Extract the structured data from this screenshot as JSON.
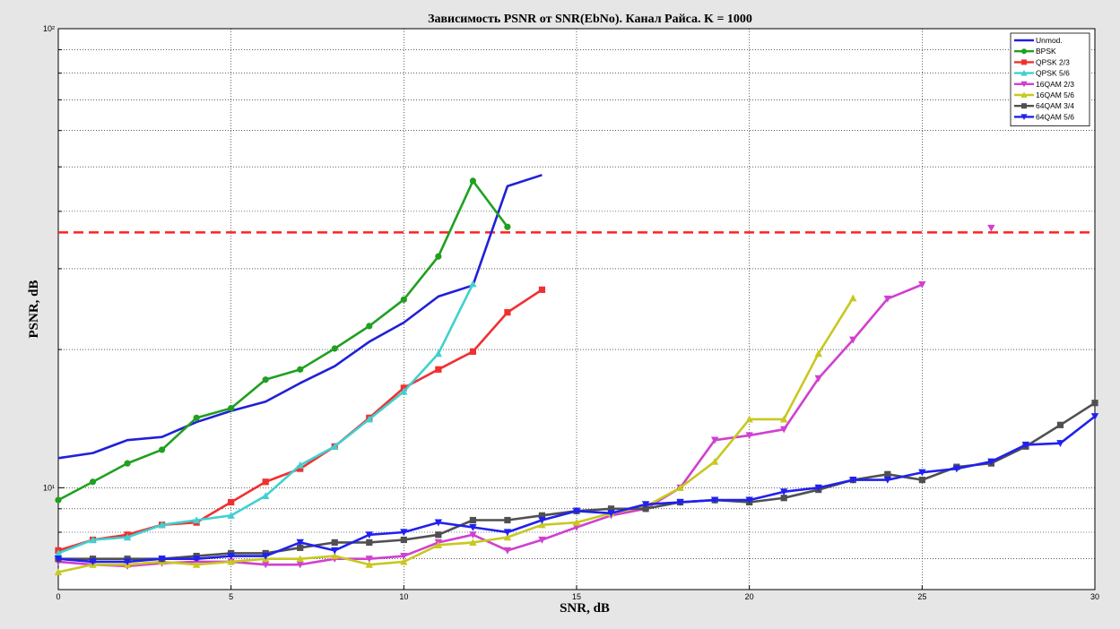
{
  "chart_data": {
    "type": "line",
    "title": "Зависимость PSNR от SNR(EbNo). Канал Райса. K = 1000",
    "xlabel": "SNR, dB",
    "ylabel": "PSNR, dB",
    "xlim": [
      0,
      30
    ],
    "ylim": [
      6,
      100
    ],
    "yscale": "log",
    "grid": true,
    "legend_position": "top-right",
    "x_ticks": [
      0,
      5,
      10,
      15,
      20,
      25,
      30
    ],
    "x_tick_labels": [
      "0",
      "5",
      "10",
      "15",
      "20",
      "25",
      "30"
    ],
    "y_ticks": [
      10,
      100
    ],
    "y_tick_labels": [
      "10¹",
      "10²"
    ],
    "threshold": {
      "value": 36,
      "color": "#ff2020",
      "style": "dashed"
    },
    "series": [
      {
        "name": "Unmod.",
        "color": "#2020d8",
        "marker": "none",
        "x": [
          0,
          1,
          2,
          3,
          4,
          5,
          6,
          7,
          8,
          9,
          10,
          11,
          12,
          13,
          14
        ],
        "y": [
          11.6,
          11.9,
          12.7,
          12.9,
          13.9,
          14.7,
          15.4,
          16.9,
          18.4,
          20.8,
          22.9,
          26.1,
          27.6,
          45.4,
          48.0
        ]
      },
      {
        "name": "BPSK",
        "color": "#20a020",
        "marker": "circle",
        "x": [
          0,
          1,
          2,
          3,
          4,
          5,
          6,
          7,
          8,
          9,
          10,
          11,
          12,
          13
        ],
        "y": [
          9.4,
          10.3,
          11.3,
          12.1,
          14.2,
          14.9,
          17.2,
          18.1,
          20.1,
          22.5,
          25.7,
          31.9,
          46.6,
          37.0
        ]
      },
      {
        "name": "QPSK 2/3",
        "color": "#f03030",
        "marker": "square",
        "x": [
          0,
          1,
          2,
          3,
          4,
          5,
          6,
          7,
          8,
          9,
          10,
          11,
          12,
          13,
          14
        ],
        "y": [
          7.3,
          7.7,
          7.9,
          8.3,
          8.4,
          9.3,
          10.3,
          11.0,
          12.3,
          14.2,
          16.5,
          18.1,
          19.8,
          24.1,
          27.0
        ]
      },
      {
        "name": "QPSK 5/6",
        "color": "#40d0d0",
        "marker": "triangle-up",
        "x": [
          0,
          1,
          2,
          3,
          4,
          5,
          6,
          7,
          8,
          9,
          10,
          11,
          12
        ],
        "y": [
          7.2,
          7.7,
          7.8,
          8.3,
          8.5,
          8.7,
          9.6,
          11.2,
          12.3,
          14.1,
          16.2,
          19.6,
          27.8
        ]
      },
      {
        "name": "16QAM 2/3",
        "color": "#d040d0",
        "marker": "triangle-down",
        "x": [
          0,
          1,
          2,
          3,
          4,
          5,
          6,
          7,
          8,
          9,
          10,
          11,
          12,
          13,
          14,
          15,
          16,
          17,
          18,
          19,
          20,
          21,
          22,
          23,
          24,
          25,
          27
        ],
        "y": [
          6.9,
          6.8,
          6.75,
          6.85,
          6.9,
          6.9,
          6.8,
          6.8,
          7.0,
          7.0,
          7.1,
          7.6,
          7.9,
          7.3,
          7.7,
          8.2,
          8.7,
          9.0,
          10.0,
          12.7,
          13.0,
          13.4,
          17.3,
          21.0,
          25.8,
          27.7,
          36.8
        ]
      },
      {
        "name": "16QAM 5/6",
        "color": "#c8c820",
        "marker": "triangle-up",
        "x": [
          0,
          1,
          2,
          3,
          4,
          5,
          6,
          7,
          8,
          9,
          10,
          11,
          12,
          13,
          14,
          15,
          16,
          17,
          18,
          19,
          20,
          21,
          22,
          23
        ],
        "y": [
          6.55,
          6.8,
          6.8,
          6.9,
          6.8,
          6.9,
          7.0,
          7.0,
          7.1,
          6.8,
          6.9,
          7.5,
          7.6,
          7.8,
          8.3,
          8.4,
          8.8,
          9.1,
          10.0,
          11.4,
          14.1,
          14.1,
          19.6,
          25.9
        ]
      },
      {
        "name": "64QAM 3/4",
        "color": "#505050",
        "marker": "square",
        "x": [
          0,
          1,
          2,
          3,
          4,
          5,
          6,
          7,
          8,
          9,
          10,
          11,
          12,
          13,
          14,
          15,
          16,
          17,
          18,
          19,
          20,
          21,
          22,
          23,
          24,
          25,
          26,
          27,
          28,
          29,
          30
        ],
        "y": [
          7.0,
          7.0,
          7.0,
          7.0,
          7.1,
          7.2,
          7.2,
          7.4,
          7.6,
          7.6,
          7.7,
          7.9,
          8.5,
          8.5,
          8.7,
          8.9,
          9.0,
          9.0,
          9.3,
          9.4,
          9.3,
          9.5,
          9.9,
          10.4,
          10.7,
          10.4,
          11.1,
          11.3,
          12.3,
          13.7,
          15.3
        ]
      },
      {
        "name": "64QAM 5/6",
        "color": "#2020f0",
        "marker": "triangle-down",
        "x": [
          0,
          1,
          2,
          3,
          4,
          5,
          6,
          7,
          8,
          9,
          10,
          11,
          12,
          13,
          14,
          15,
          16,
          17,
          18,
          19,
          20,
          21,
          22,
          23,
          24,
          25,
          26,
          27,
          28,
          29,
          30
        ],
        "y": [
          7.0,
          6.9,
          6.9,
          7.0,
          7.0,
          7.1,
          7.1,
          7.6,
          7.3,
          7.9,
          8.0,
          8.4,
          8.2,
          8.0,
          8.5,
          8.9,
          8.8,
          9.2,
          9.3,
          9.4,
          9.4,
          9.8,
          10.0,
          10.4,
          10.4,
          10.8,
          11.0,
          11.4,
          12.4,
          12.5,
          14.3
        ]
      }
    ]
  }
}
